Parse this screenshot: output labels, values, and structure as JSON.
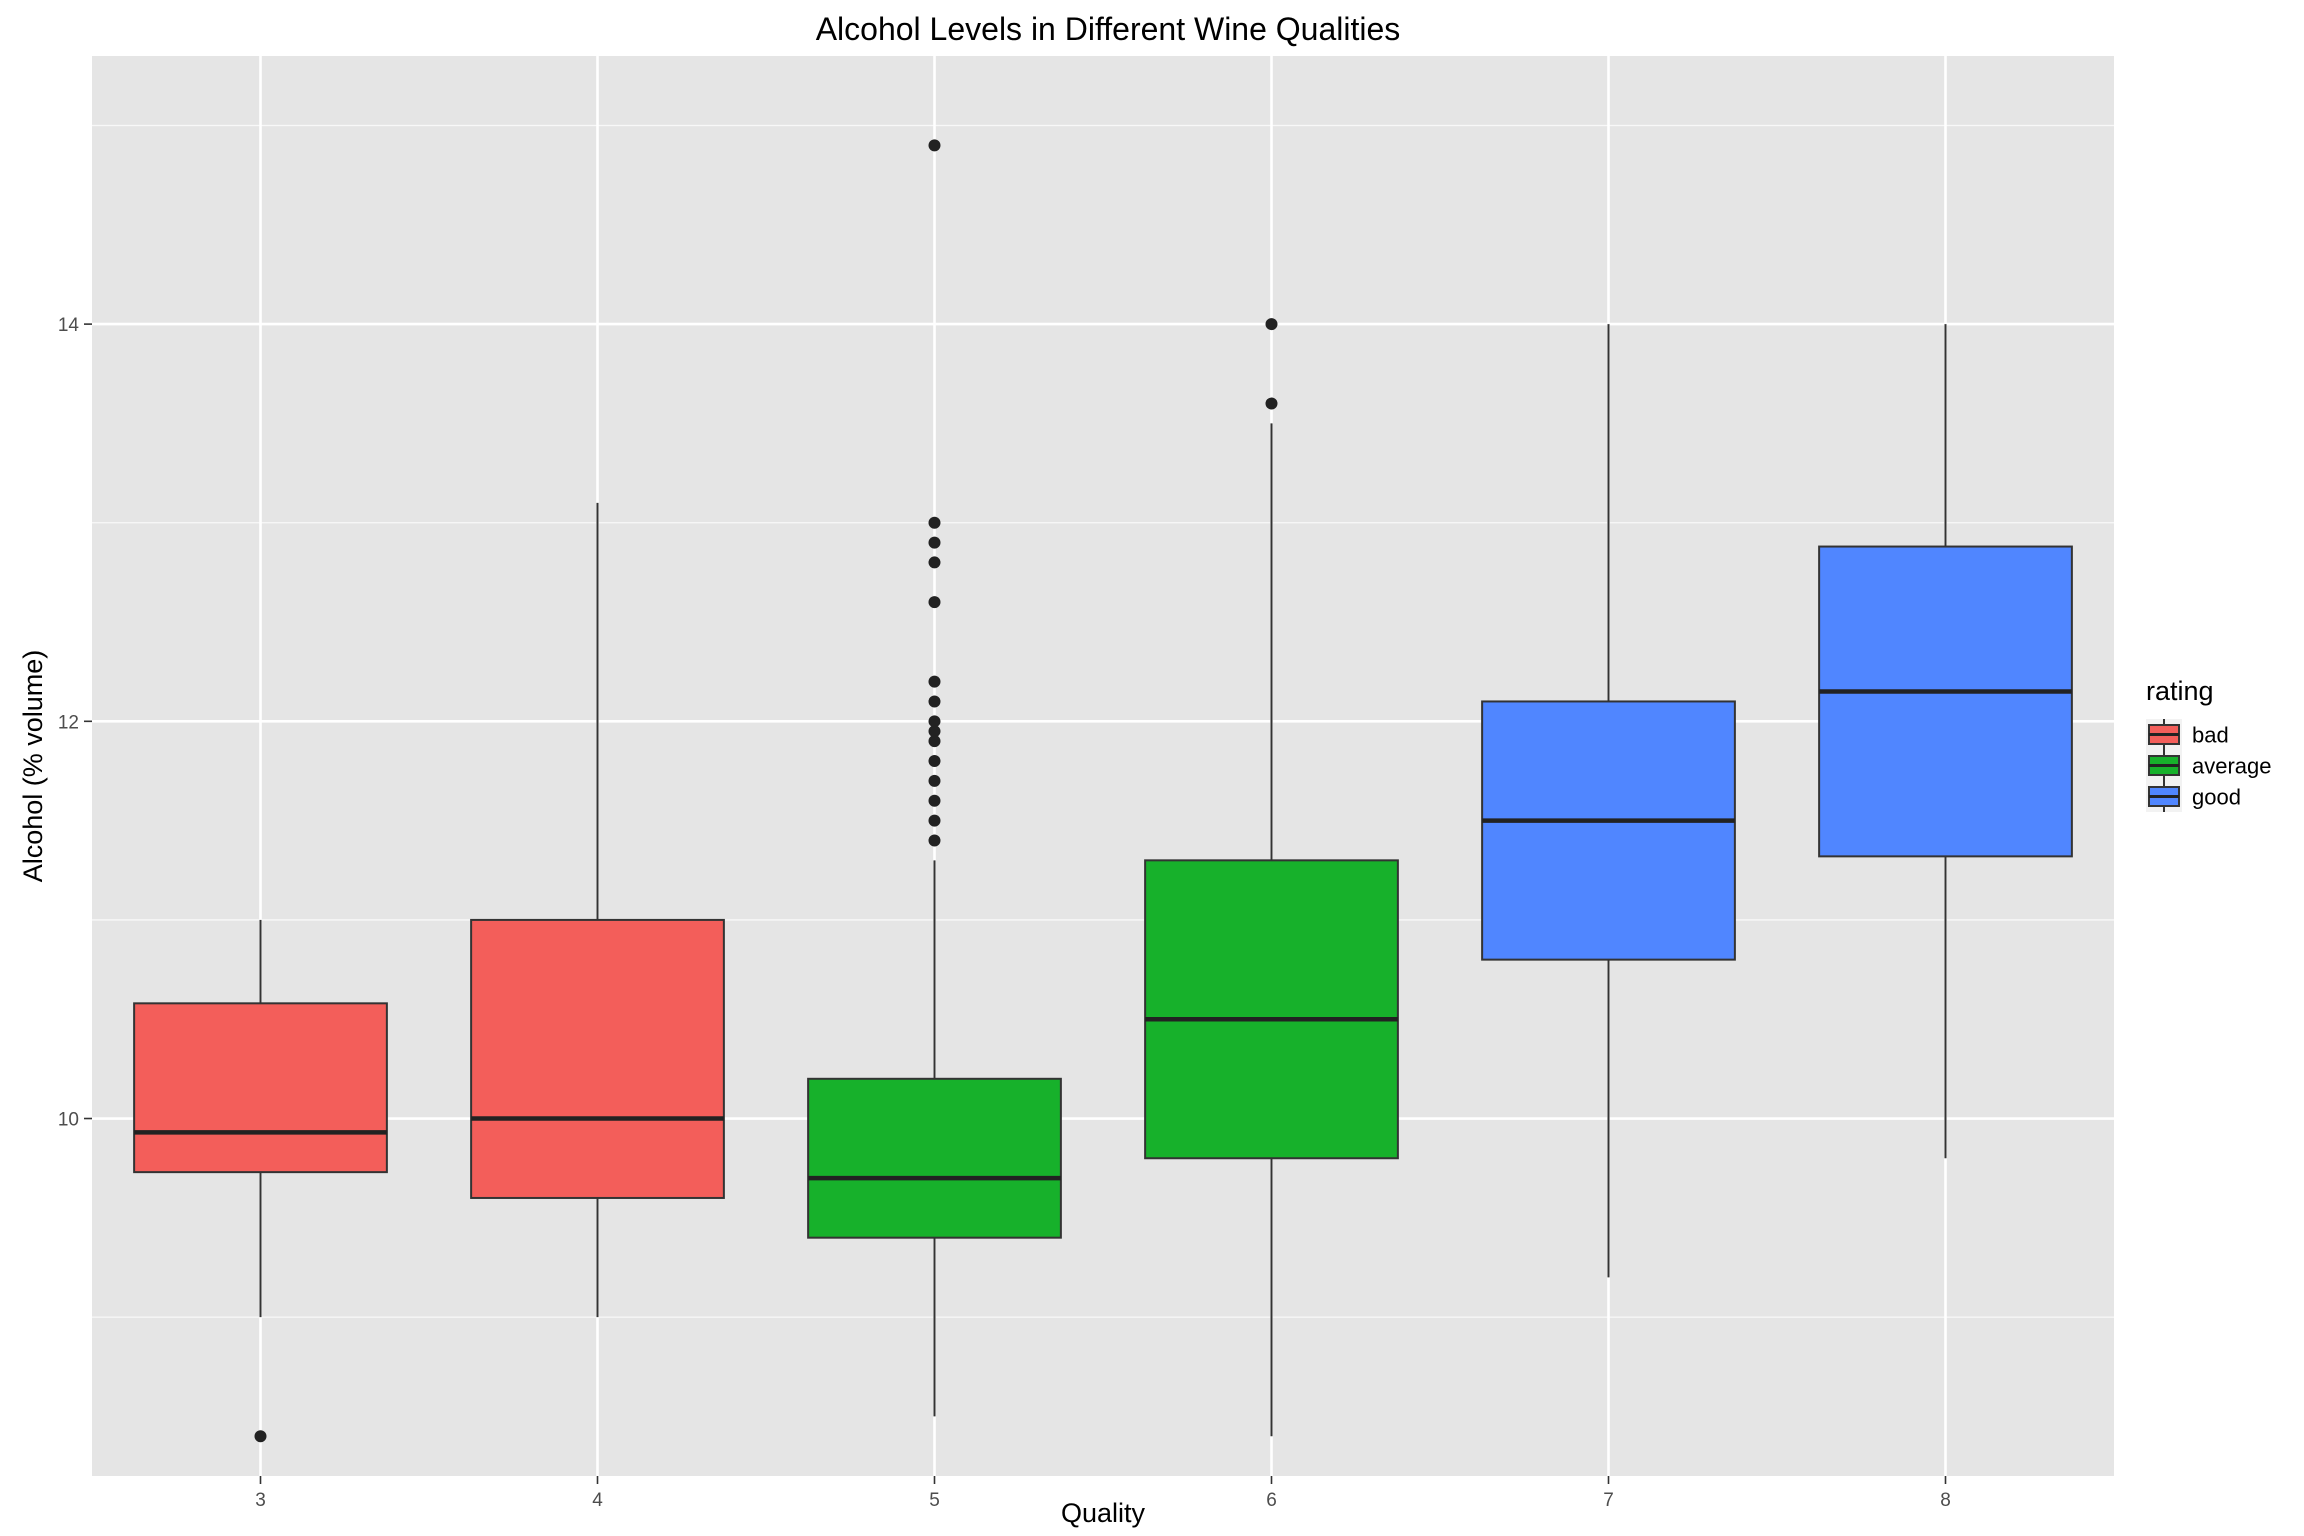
{
  "chart_data": {
    "type": "box",
    "title": "Alcohol Levels in Different Wine Qualities",
    "xlabel": "Quality",
    "ylabel": "Alcohol (% volume)",
    "ylim": [
      8.2,
      15.35
    ],
    "y_ticks": [
      10,
      12,
      14
    ],
    "grid": true,
    "legend": {
      "title": "rating",
      "position": "right",
      "entries": [
        {
          "label": "bad",
          "color": "#F35E5A"
        },
        {
          "label": "average",
          "color": "#17B12B"
        },
        {
          "label": "good",
          "color": "#5086FF"
        }
      ]
    },
    "boxes": [
      {
        "category": "3",
        "rating": "bad",
        "whisker_low": 9.0,
        "q1": 9.73,
        "median": 9.93,
        "q3": 10.58,
        "whisker_high": 11.0,
        "outliers": [
          8.4
        ]
      },
      {
        "category": "4",
        "rating": "bad",
        "whisker_low": 9.0,
        "q1": 9.6,
        "median": 10.0,
        "q3": 11.0,
        "whisker_high": 13.1,
        "outliers": []
      },
      {
        "category": "5",
        "rating": "average",
        "whisker_low": 8.5,
        "q1": 9.4,
        "median": 9.7,
        "q3": 10.2,
        "whisker_high": 11.3,
        "outliers": [
          11.4,
          11.5,
          11.6,
          11.7,
          11.8,
          11.9,
          11.95,
          12.0,
          12.1,
          12.2,
          12.6,
          12.8,
          12.9,
          13.0,
          14.9
        ]
      },
      {
        "category": "6",
        "rating": "average",
        "whisker_low": 8.4,
        "q1": 9.8,
        "median": 10.5,
        "q3": 11.3,
        "whisker_high": 13.5,
        "outliers": [
          13.6,
          14.0
        ]
      },
      {
        "category": "7",
        "rating": "good",
        "whisker_low": 9.2,
        "q1": 10.8,
        "median": 11.5,
        "q3": 12.1,
        "whisker_high": 14.0,
        "outliers": []
      },
      {
        "category": "8",
        "rating": "good",
        "whisker_low": 9.8,
        "q1": 11.32,
        "median": 12.15,
        "q3": 12.88,
        "whisker_high": 14.0,
        "outliers": []
      }
    ],
    "colors": {
      "panel_background": "#E5E5E5",
      "grid_major": "#FFFFFF",
      "box_outline": "#333333",
      "median_line": "#222222",
      "outlier": "#222222"
    }
  }
}
